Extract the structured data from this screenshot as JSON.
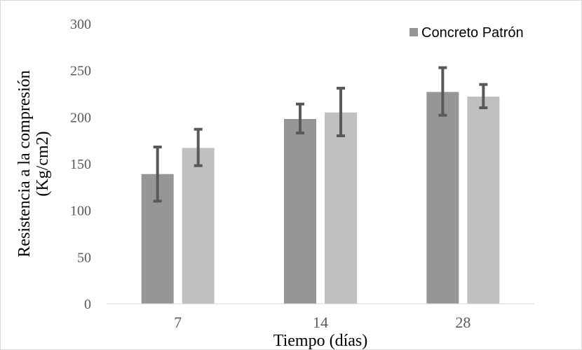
{
  "chart_data": {
    "type": "bar",
    "categories": [
      "7",
      "14",
      "28"
    ],
    "series": [
      {
        "name": "Concreto Patrón",
        "color": "#969696",
        "values": [
          139,
          198,
          227
        ],
        "error_low": [
          110,
          183,
          202
        ],
        "error_high": [
          168,
          214,
          253
        ]
      },
      {
        "color": "#c0c0c0",
        "values": [
          167,
          205,
          222
        ],
        "error_low": [
          148,
          180,
          210
        ],
        "error_high": [
          187,
          231,
          235
        ]
      }
    ],
    "error_bar_color": "#595959",
    "xlabel": "Tiempo (días)",
    "ylabel_lines": [
      "Resistencia a la compresión",
      "(Kg/cm2)"
    ],
    "ylim": [
      0,
      300
    ],
    "yticks": [
      0,
      50,
      100,
      150,
      200,
      250,
      300
    ],
    "grid": false,
    "legend_position": "top-right"
  }
}
